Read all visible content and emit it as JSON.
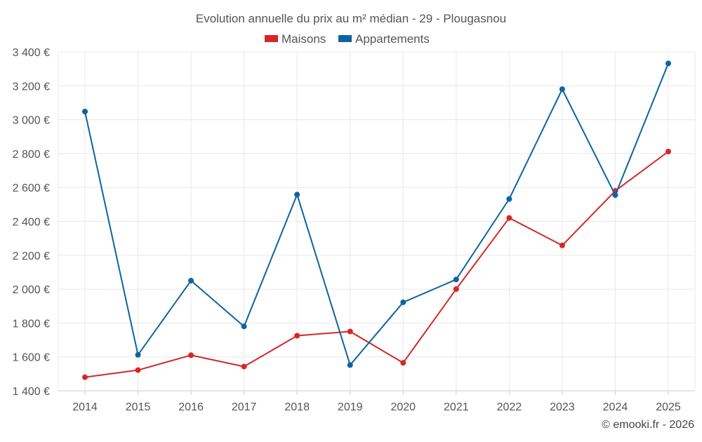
{
  "chart_data": {
    "type": "line",
    "title": "Evolution annuelle du prix au m² médian - 29 - Plougasnou",
    "xlabel": "",
    "ylabel": "",
    "categories": [
      "2014",
      "2015",
      "2016",
      "2017",
      "2018",
      "2019",
      "2020",
      "2021",
      "2022",
      "2023",
      "2024",
      "2025"
    ],
    "ylim": [
      1400,
      3400
    ],
    "yticks": [
      1400,
      1600,
      1800,
      2000,
      2200,
      2400,
      2600,
      2800,
      3000,
      3200,
      3400
    ],
    "ytick_labels": [
      "1 400 €",
      "1 600 €",
      "1 800 €",
      "2 000 €",
      "2 200 €",
      "2 400 €",
      "2 600 €",
      "2 800 €",
      "3 000 €",
      "3 200 €",
      "3 400 €"
    ],
    "grid": true,
    "legend_position": "top-center",
    "series": [
      {
        "name": "Maisons",
        "color": "#d62728",
        "values": [
          1480,
          1522,
          1610,
          1543,
          1725,
          1750,
          1565,
          2000,
          2420,
          2258,
          2580,
          2812
        ]
      },
      {
        "name": "Appartements",
        "color": "#0d64a0",
        "values": [
          3048,
          1612,
          2050,
          1780,
          2558,
          1552,
          1922,
          2057,
          2532,
          3180,
          2555,
          3332
        ]
      }
    ]
  },
  "footer": {
    "credit": "© emooki.fr - 2026"
  }
}
